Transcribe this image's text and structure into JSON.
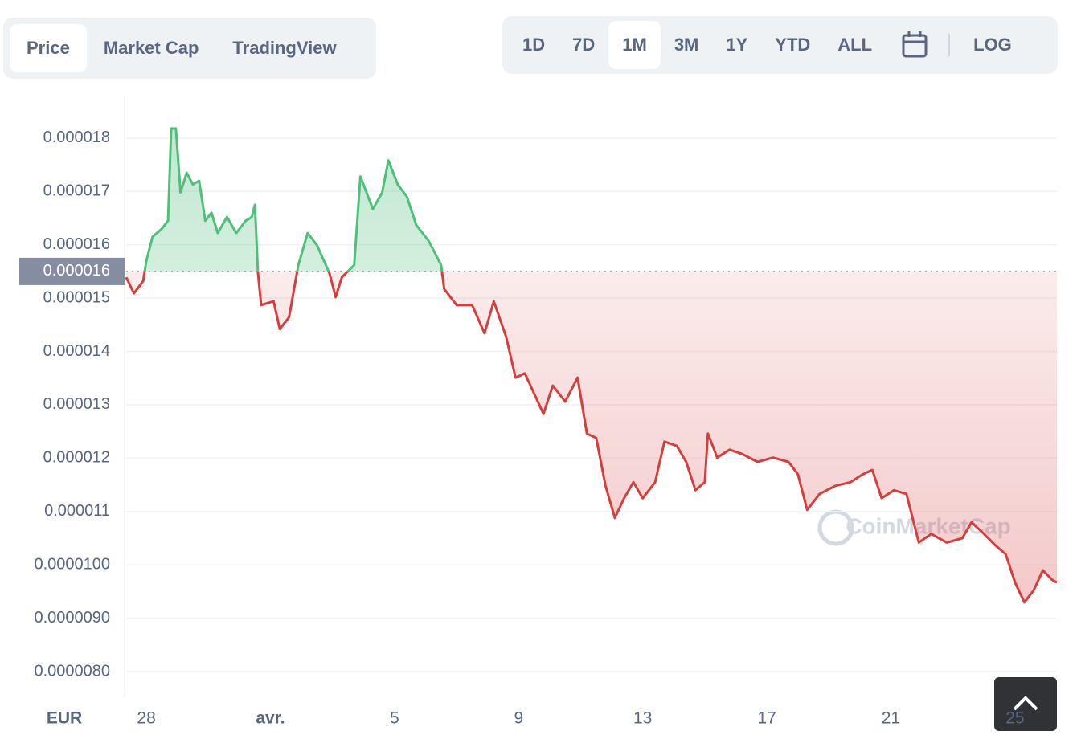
{
  "tabs": [
    "Price",
    "Market Cap",
    "TradingView"
  ],
  "active_tab": 0,
  "ranges": [
    "1D",
    "7D",
    "1M",
    "3M",
    "1Y",
    "YTD",
    "ALL"
  ],
  "active_range": 2,
  "log_button": "LOG",
  "watermark": "CoinMarketCap",
  "chart_data": {
    "type": "line",
    "currency": "EUR",
    "x": [
      -0.65,
      -0.4,
      -0.1,
      0.0,
      0.2,
      0.5,
      0.7,
      0.8,
      0.95,
      1.1,
      1.3,
      1.5,
      1.7,
      1.9,
      2.1,
      2.3,
      2.6,
      2.9,
      3.2,
      3.4,
      3.5,
      3.6,
      3.7,
      4.1,
      4.3,
      4.6,
      4.9,
      5.2,
      5.5,
      5.9,
      6.1,
      6.3,
      6.7,
      6.9,
      7.3,
      7.6,
      7.8,
      8.1,
      8.4,
      8.7,
      9.1,
      9.5,
      9.6,
      10.0,
      10.5,
      10.9,
      11.2,
      11.6,
      11.9,
      12.2,
      12.5,
      12.8,
      13.1,
      13.5,
      13.9,
      14.2,
      14.5,
      14.8,
      15.1,
      15.4,
      15.7,
      16.0,
      16.4,
      16.7,
      17.1,
      17.4,
      17.7,
      18.0,
      18.1,
      18.4,
      18.8,
      19.2,
      19.7,
      20.2,
      20.7,
      21.0,
      21.3,
      21.7,
      22.2,
      22.7,
      23.1,
      23.4,
      23.7,
      24.1,
      24.5,
      24.9,
      25.3,
      25.8,
      26.3,
      26.6,
      27.0,
      27.4,
      27.7,
      28.0,
      28.3,
      28.6,
      28.9,
      29.2,
      29.35
    ],
    "values": [
      1.539e-05,
      1.509e-05,
      1.532e-05,
      1.57e-05,
      1.615e-05,
      1.63e-05,
      1.645e-05,
      1.818e-05,
      1.818e-05,
      1.698e-05,
      1.735e-05,
      1.713e-05,
      1.72e-05,
      1.645e-05,
      1.66e-05,
      1.622e-05,
      1.652e-05,
      1.622e-05,
      1.645e-05,
      1.652e-05,
      1.675e-05,
      1.547e-05,
      1.487e-05,
      1.494e-05,
      1.442e-05,
      1.464e-05,
      1.562e-05,
      1.622e-05,
      1.599e-05,
      1.547e-05,
      1.502e-05,
      1.539e-05,
      1.562e-05,
      1.728e-05,
      1.667e-05,
      1.698e-05,
      1.758e-05,
      1.713e-05,
      1.69e-05,
      1.637e-05,
      1.607e-05,
      1.562e-05,
      1.517e-05,
      1.487e-05,
      1.487e-05,
      1.434e-05,
      1.494e-05,
      1.427e-05,
      1.351e-05,
      1.359e-05,
      1.321e-05,
      1.283e-05,
      1.336e-05,
      1.306e-05,
      1.351e-05,
      1.246e-05,
      1.238e-05,
      1.148e-05,
      1.088e-05,
      1.125e-05,
      1.155e-05,
      1.125e-05,
      1.155e-05,
      1.231e-05,
      1.223e-05,
      1.193e-05,
      1.14e-05,
      1.155e-05,
      1.246e-05,
      1.201e-05,
      1.216e-05,
      1.208e-05,
      1.193e-05,
      1.201e-05,
      1.193e-05,
      1.17e-05,
      1.103e-05,
      1.133e-05,
      1.148e-05,
      1.155e-05,
      1.17e-05,
      1.178e-05,
      1.125e-05,
      1.14e-05,
      1.133e-05,
      1.042e-05,
      1.058e-05,
      1.042e-05,
      1.05e-05,
      1.08e-05,
      1.058e-05,
      1.035e-05,
      1.02e-05,
      9.67e-06,
      9.3e-06,
      9.52e-06,
      9.9e-06,
      9.72e-06,
      9.67e-06
    ],
    "reference": {
      "value": 1.55e-05,
      "label": "0.000016"
    },
    "up_color": "#4fbf7a",
    "down_color": "#d63e3e",
    "xlim": [
      -0.65,
      29.35
    ],
    "xticks": [
      {
        "value": 0,
        "label": "28"
      },
      {
        "value": 4,
        "label": "avr."
      },
      {
        "value": 8,
        "label": "5"
      },
      {
        "value": 12,
        "label": "9"
      },
      {
        "value": 16,
        "label": "13"
      },
      {
        "value": 20,
        "label": "17"
      },
      {
        "value": 24,
        "label": "21"
      },
      {
        "value": 28,
        "label": "25"
      }
    ],
    "ylim": [
      7.52e-06,
      1.878e-05
    ],
    "yticks": [
      1.8e-05,
      1.7e-05,
      1.6e-05,
      1.5e-05,
      1.4e-05,
      1.3e-05,
      1.2e-05,
      1.1e-05,
      {
        "value": 1e-05,
        "label": "0.0000100"
      },
      {
        "value": 9e-06,
        "label": "0.0000090"
      },
      {
        "value": 8e-06,
        "label": "0.0000080"
      }
    ],
    "grid": true
  }
}
